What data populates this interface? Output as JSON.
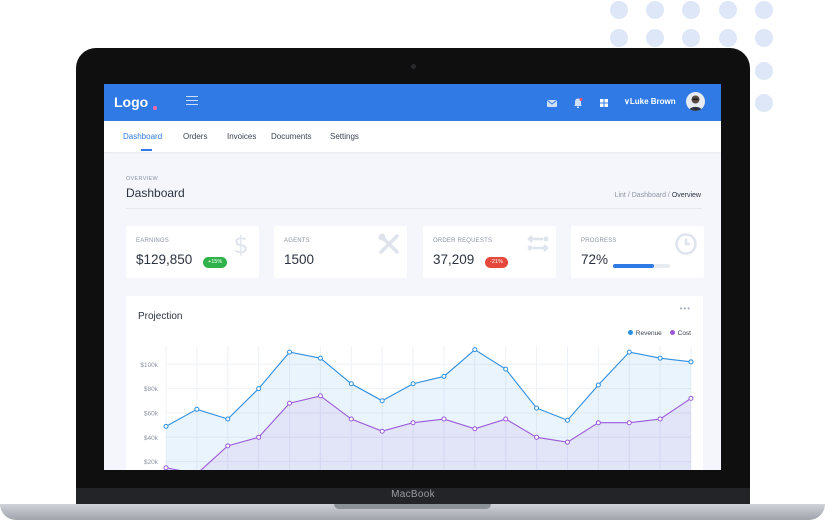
{
  "laptop": {
    "brand": "MacBook"
  },
  "topbar": {
    "logo": "Logo",
    "user_name": "∨Luke Brown",
    "icons": [
      "menu-icon",
      "mail-icon",
      "bell-icon",
      "grid-icon"
    ],
    "accent": "#2f7ae5"
  },
  "nav": {
    "tabs": [
      {
        "label": "Dashboard",
        "active": true
      },
      {
        "label": "Orders"
      },
      {
        "label": "Invoices"
      },
      {
        "label": "Documents"
      },
      {
        "label": "Settings"
      }
    ]
  },
  "page": {
    "overline": "OVERVIEW",
    "title": "Dashboard",
    "breadcrumb": [
      "Lint",
      "Dashboard",
      "Overview"
    ]
  },
  "cards": {
    "earnings": {
      "label": "EARNINGS",
      "value": "$129,850",
      "badge": "+15%",
      "icon": "dollar-icon"
    },
    "agents": {
      "label": "AGENTS",
      "value": "1500",
      "icon": "tools-icon"
    },
    "orders": {
      "label": "ORDER REQUESTS",
      "value": "37,209",
      "badge": "-21%",
      "icon": "transfer-icon"
    },
    "progress": {
      "label": "PROGRESS",
      "value": "72%",
      "level": 0.72,
      "icon": "clock-icon"
    }
  },
  "chart": {
    "title": "Projection",
    "legend": [
      {
        "name": "Revenue",
        "color": "#2f8fe0"
      },
      {
        "name": "Cost",
        "color": "#9b59d9"
      }
    ]
  },
  "chart_data": {
    "type": "line",
    "title": "Projection",
    "y_ticks": [
      "$100k",
      "$80k",
      "$60k",
      "$40k",
      "$20k"
    ],
    "ylim": [
      0,
      115
    ],
    "x": [
      1,
      2,
      3,
      4,
      5,
      6,
      7,
      8,
      9,
      10,
      11,
      12,
      13,
      14,
      15,
      16,
      17,
      18
    ],
    "series": [
      {
        "name": "Revenue",
        "color": "#2f8fe0",
        "values": [
          49,
          63,
          55,
          80,
          110,
          105,
          84,
          70,
          84,
          90,
          112,
          96,
          64,
          54,
          83,
          110,
          105,
          102
        ]
      },
      {
        "name": "Cost",
        "color": "#9b59d9",
        "values": [
          15,
          10,
          33,
          40,
          68,
          74,
          55,
          45,
          52,
          55,
          47,
          55,
          40,
          36,
          52,
          52,
          55,
          72
        ]
      }
    ],
    "grid": true,
    "legend_position": "top-right"
  }
}
